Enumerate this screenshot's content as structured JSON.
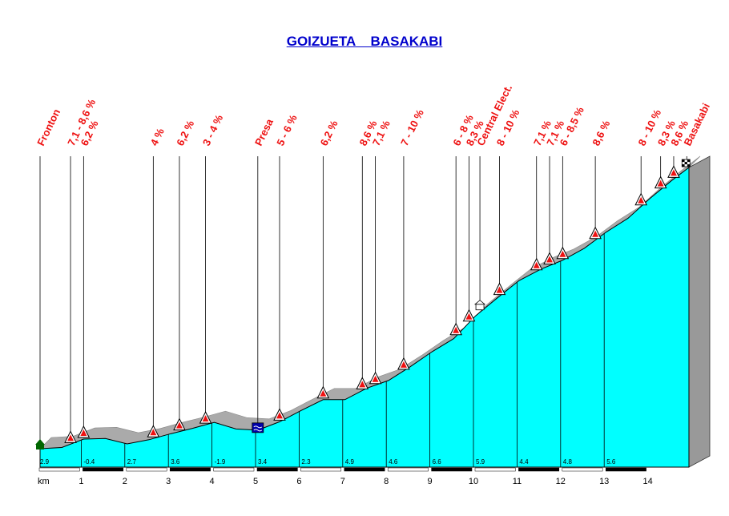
{
  "title": "GOIZUETA    BASAKABI",
  "chart_data": {
    "type": "area",
    "title": "GOIZUETA    BASAKABI",
    "xlabel": "km",
    "ylabel": "",
    "xlim": [
      0,
      14.9
    ],
    "x_ticks": [
      "km",
      "1",
      "2",
      "3",
      "4",
      "5",
      "6",
      "7",
      "8",
      "9",
      "10",
      "11",
      "12",
      "13",
      "14"
    ],
    "gradients_per_km": [
      "2.9",
      "-0.4",
      "2.7",
      "3.6",
      "-1.9",
      "3.4",
      "2.3",
      "4.9",
      "4.6",
      "6.6",
      "5.9",
      "4.4",
      "4.8",
      "5.6"
    ],
    "profile": {
      "x": [
        0,
        0.5,
        1.0,
        1.5,
        2.0,
        2.5,
        3.0,
        3.5,
        4.0,
        4.5,
        5.0,
        5.5,
        6.0,
        6.5,
        7.0,
        7.5,
        8.0,
        8.5,
        9.0,
        9.5,
        10.0,
        10.5,
        11.0,
        11.5,
        12.0,
        12.5,
        13.0,
        13.5,
        14.0,
        14.5,
        14.9
      ],
      "y": [
        0,
        2,
        16,
        17,
        8,
        15,
        25,
        34,
        44,
        33,
        31,
        45,
        64,
        82,
        82,
        101,
        114,
        137,
        162,
        184,
        222,
        252,
        281,
        300,
        315,
        335,
        362,
        385,
        418,
        448,
        470
      ]
    },
    "markers": [
      {
        "x": 0.0,
        "label": "Fronton",
        "type": "start"
      },
      {
        "x": 0.7,
        "label": "7,1 - 8,6 %",
        "type": "climb"
      },
      {
        "x": 1.0,
        "label": "6,2 %",
        "type": "climb"
      },
      {
        "x": 2.6,
        "label": "4 %",
        "type": "climb"
      },
      {
        "x": 3.2,
        "label": "6,2 %",
        "type": "climb"
      },
      {
        "x": 3.8,
        "label": "3 - 4 %",
        "type": "climb"
      },
      {
        "x": 5.0,
        "label": "Presa",
        "type": "dam"
      },
      {
        "x": 5.5,
        "label": "5 - 6 %",
        "type": "climb"
      },
      {
        "x": 6.5,
        "label": "6,2 %",
        "type": "climb"
      },
      {
        "x": 7.4,
        "label": "8,6 %",
        "type": "climb"
      },
      {
        "x": 7.7,
        "label": "7,1 %",
        "type": "climb"
      },
      {
        "x": 8.35,
        "label": "7 - 10 %",
        "type": "climb"
      },
      {
        "x": 9.55,
        "label": "6 - 8 %",
        "type": "climb"
      },
      {
        "x": 9.85,
        "label": "8,3 %",
        "type": "climb"
      },
      {
        "x": 10.1,
        "label": "Central Elect.",
        "type": "power"
      },
      {
        "x": 10.55,
        "label": "8 - 10 %",
        "type": "climb"
      },
      {
        "x": 11.4,
        "label": "7,1 %",
        "type": "climb"
      },
      {
        "x": 11.7,
        "label": "7,1 %",
        "type": "climb"
      },
      {
        "x": 12.0,
        "label": "6 - 8,5 %",
        "type": "climb"
      },
      {
        "x": 12.75,
        "label": "8,6 %",
        "type": "climb"
      },
      {
        "x": 13.8,
        "label": "8 - 10 %",
        "type": "climb"
      },
      {
        "x": 14.25,
        "label": "8,3 %",
        "type": "climb"
      },
      {
        "x": 14.55,
        "label": "8,6 %",
        "type": "climb"
      },
      {
        "x": 14.85,
        "label": "Basakabi",
        "type": "finish"
      }
    ],
    "colors": {
      "fill": "#00ffff",
      "right_face": "#999999",
      "shadow": "#aaaaaa",
      "label": "#ee1111",
      "title": "#0000cc",
      "marker_fill": "#ee1111"
    },
    "grid": false
  }
}
